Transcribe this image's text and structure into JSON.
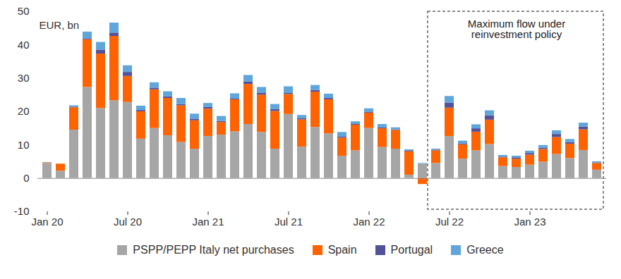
{
  "chart_data": {
    "type": "bar",
    "stacked": true,
    "legend": "bottom",
    "y_label": "EUR, bn",
    "annotation": "Maximum flow under reinvestment policy",
    "categories": [
      "Jan 20",
      null,
      null,
      null,
      null,
      null,
      "Jul 20",
      null,
      null,
      null,
      null,
      null,
      "Jan 21",
      null,
      null,
      null,
      null,
      null,
      "Jul 21",
      null,
      null,
      null,
      null,
      null,
      "Jan 22",
      null,
      null,
      null,
      null,
      null,
      "Jul 22",
      null,
      null,
      null,
      null,
      null,
      "Jan 23",
      null,
      null,
      null,
      null,
      null
    ],
    "series": [
      {
        "name": "PSPP/PEPP Italy net purchases",
        "color": "#a6a6a6",
        "values": [
          4.5,
          2.2,
          14.5,
          27.3,
          21,
          23.3,
          22.8,
          11.8,
          15,
          12.8,
          10.8,
          8.8,
          12.6,
          13,
          14,
          16.2,
          13.8,
          8.8,
          19.2,
          9.4,
          15.3,
          13.4,
          6.7,
          8.3,
          15,
          9.3,
          8.8,
          1,
          4.3,
          4.5,
          12.6,
          5.8,
          8.3,
          10.2,
          3.6,
          3.3,
          4,
          4.9,
          7.2,
          6,
          8.4,
          2.5
        ]
      },
      {
        "name": "Spain",
        "color": "#ff6200",
        "values": [
          0.2,
          2.1,
          6.7,
          14.3,
          16.3,
          19.3,
          7.8,
          8.2,
          11.6,
          11.2,
          11,
          8.5,
          8.2,
          3.8,
          9.6,
          12,
          11.2,
          11.3,
          6,
          8.2,
          10.6,
          10.2,
          5.4,
          7.7,
          4.6,
          5.6,
          5.6,
          7,
          -1.8,
          3.8,
          8.5,
          4.3,
          5.6,
          7.3,
          2.6,
          2.5,
          3,
          3.8,
          5.1,
          4.3,
          6.2,
          2
        ]
      },
      {
        "name": "Portugal",
        "color": "#525199",
        "values": [
          0,
          0,
          0.2,
          0.3,
          1.2,
          1,
          1.2,
          0.4,
          0.5,
          0.5,
          0.4,
          0.5,
          0.5,
          0.3,
          0.2,
          0.7,
          0.6,
          0.6,
          0.3,
          0.3,
          0.5,
          0.4,
          0.4,
          0.2,
          0.3,
          0.3,
          0.2,
          0.3,
          0,
          0.2,
          1.5,
          0.3,
          1,
          1.3,
          0.2,
          0.4,
          0.5,
          0.4,
          0.9,
          0.5,
          0.8,
          0.2
        ]
      },
      {
        "name": "Greece",
        "color": "#60a6da",
        "values": [
          0.1,
          0,
          0.4,
          2,
          2.3,
          3,
          2,
          1.3,
          1.6,
          1.5,
          1.8,
          1.5,
          1.2,
          1.5,
          1.6,
          2,
          1.7,
          1.5,
          2,
          1,
          1.5,
          1.3,
          1.3,
          0.8,
          1,
          1,
          0.6,
          0.3,
          0.2,
          0.3,
          2,
          0.8,
          1.2,
          1.5,
          0.5,
          0.5,
          0.7,
          0.8,
          1.1,
          0.9,
          1.2,
          0.3
        ]
      }
    ],
    "ylim": [
      -10,
      50
    ],
    "yticks": [
      -10,
      0,
      10,
      20,
      30,
      40,
      50
    ]
  }
}
